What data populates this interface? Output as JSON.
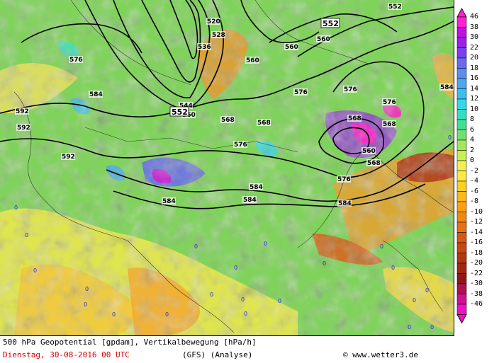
{
  "footer": {
    "product": "500 hPa Geopotential [gpdam], Vertikalbewegung [hPa/h]",
    "date": "Dienstag, 30-08-2016  00 UTC",
    "model": "(GFS)  (Analyse)",
    "copyright": "© www.wetter3.de"
  },
  "legend": {
    "values": [
      "46",
      "38",
      "30",
      "22",
      "20",
      "18",
      "16",
      "14",
      "12",
      "10",
      "8",
      "6",
      "4",
      "2",
      "0",
      "-2",
      "-4",
      "-6",
      "-8",
      "-10",
      "-12",
      "-14",
      "-16",
      "-18",
      "-20",
      "-22",
      "-30",
      "-38",
      "-46"
    ],
    "colors": [
      "#ff20d0",
      "#c010e0",
      "#9a20e8",
      "#7a40f0",
      "#6a6af0",
      "#5a8cf2",
      "#4aa8f2",
      "#3ac0f0",
      "#30d8e8",
      "#30e0c0",
      "#40e090",
      "#70e070",
      "#a0e858",
      "#c8f050",
      "#f0f050",
      "#ffe840",
      "#ffd020",
      "#ffb818",
      "#ffa010",
      "#f08810",
      "#e87010",
      "#d85810",
      "#c84810",
      "#b03810",
      "#a02810",
      "#901818",
      "#b01050",
      "#d01090",
      "#f010c0"
    ]
  },
  "map": {
    "geopotential_labels": [
      "520",
      "528",
      "536",
      "544",
      "552",
      "560",
      "568",
      "576",
      "584",
      "592"
    ],
    "labelled_centres": [
      {
        "label": "552",
        "bold": true
      },
      {
        "label": "552",
        "bold": true
      }
    ],
    "vertical_motion_zero_label": "0"
  }
}
